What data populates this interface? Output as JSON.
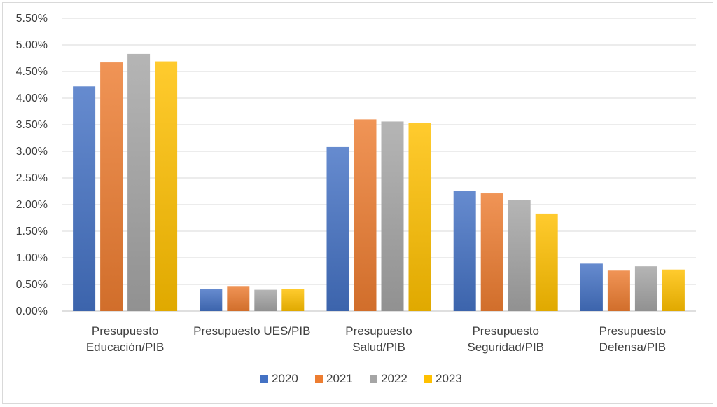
{
  "chart_data": {
    "type": "bar",
    "categories": [
      [
        "Presupuesto",
        "Educación/PIB"
      ],
      [
        "Presupuesto UES/PIB"
      ],
      [
        "Presupuesto",
        "Salud/PIB"
      ],
      [
        "Presupuesto",
        "Seguridad/PIB"
      ],
      [
        "Presupuesto",
        "Defensa/PIB"
      ]
    ],
    "series": [
      {
        "name": "2020",
        "color": "#4472C4",
        "values": [
          4.22,
          0.41,
          3.08,
          2.25,
          0.89
        ]
      },
      {
        "name": "2021",
        "color": "#ED7D31",
        "values": [
          4.67,
          0.47,
          3.6,
          2.21,
          0.76
        ]
      },
      {
        "name": "2022",
        "color": "#A5A5A5",
        "values": [
          4.83,
          0.4,
          3.56,
          2.09,
          0.84
        ]
      },
      {
        "name": "2023",
        "color": "#FFC000",
        "values": [
          4.69,
          0.41,
          3.53,
          1.83,
          0.78
        ]
      }
    ],
    "yticks": [
      "0.00%",
      "0.50%",
      "1.00%",
      "1.50%",
      "2.00%",
      "2.50%",
      "3.00%",
      "3.50%",
      "4.00%",
      "4.50%",
      "5.00%",
      "5.50%"
    ],
    "ylim": [
      0,
      5.5
    ],
    "grid": true,
    "legend_position": "bottom",
    "title": "",
    "xlabel": "",
    "ylabel": ""
  }
}
